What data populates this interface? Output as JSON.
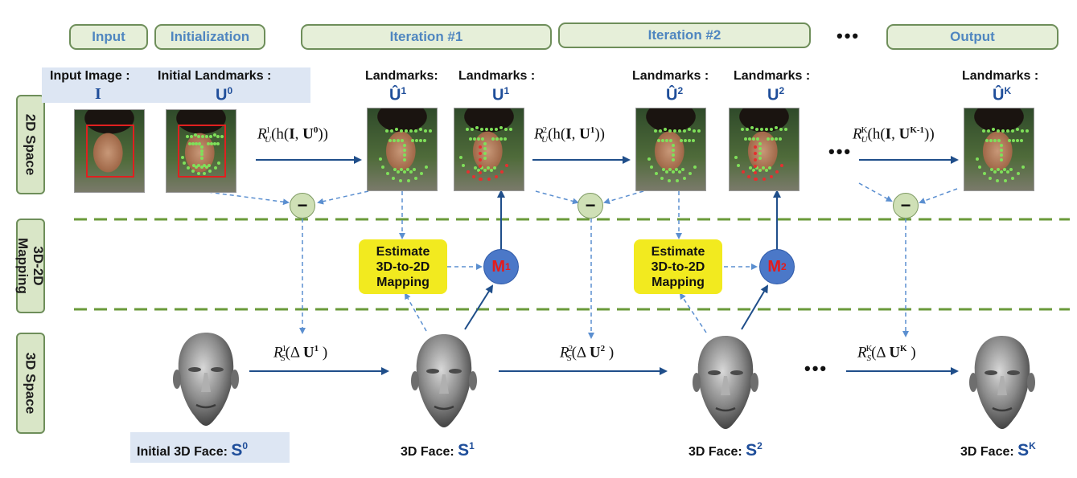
{
  "stage_tags": {
    "input": "Input",
    "initialization": "Initialization",
    "iteration1": "Iteration #1",
    "iteration2": "Iteration #2",
    "ellipsis": "•••",
    "output": "Output"
  },
  "row_labels": {
    "space2d": "2D Space",
    "mapping_line1": "3D-2D",
    "mapping_line2": "Mapping",
    "space3d": "3D Space"
  },
  "labels": {
    "input_image": "Input Image :",
    "initial_landmarks": "Initial Landmarks :",
    "landmarks_hat_1": "Landmarks:",
    "landmarks_1": "Landmarks :",
    "landmarks_hat_2": "Landmarks :",
    "landmarks_2": "Landmarks :",
    "landmarks_hat_k": "Landmarks :"
  },
  "symbols": {
    "I": "I",
    "U0_base": "U",
    "U0_sup": "0",
    "Uhat1_base": "Û",
    "Uhat1_sup": "1",
    "U1_base": "U",
    "U1_sup": "1",
    "Uhat2_base": "Û",
    "Uhat2_sup": "2",
    "U2_base": "U",
    "U2_sup": "2",
    "UhatK_base": "Û",
    "UhatK_sup": "K"
  },
  "formulas": {
    "f1": {
      "R": "R",
      "sub": "U",
      "sup": "1",
      "open": "(h(",
      "I": "I",
      "comma": ", ",
      "U": "U",
      "Usup": "0",
      "close": "))"
    },
    "f2": {
      "R": "R",
      "sub": "U",
      "sup": "2",
      "open": "(h(",
      "I": "I",
      "comma": ", ",
      "U": "U",
      "Usup": "1",
      "close": "))"
    },
    "fk": {
      "R": "R",
      "sub": "U",
      "sup": "K",
      "open": "(h(",
      "I": "I",
      "comma": ", ",
      "U": "U",
      "Usup": "K-1",
      "close": "))"
    },
    "s1": {
      "R": "R",
      "sub": "S",
      "sup": "1",
      "open": "(Δ ",
      "U": "U",
      "Usup": "1",
      "close": " )"
    },
    "s2": {
      "R": "R",
      "sub": "S",
      "sup": "2",
      "open": "(Δ  ",
      "U": "U",
      "Usup": "2",
      "close": " )"
    },
    "sk": {
      "R": "R",
      "sub": "S",
      "sup": "K",
      "open": "(Δ ",
      "U": "U",
      "Usup": "K",
      "close": " )"
    }
  },
  "estimate_box": {
    "line1": "Estimate",
    "line2": "3D-to-2D",
    "line3": "Mapping"
  },
  "mapping_nodes": {
    "m1_base": "M",
    "m1_sup": "1",
    "m2_base": "M",
    "m2_sup": "2"
  },
  "minus_symbol": "−",
  "faces": {
    "s0_label": "Initial 3D Face:",
    "s0_base": "S",
    "s0_sup": "0",
    "s1_label": "3D Face:",
    "s1_base": "S",
    "s1_sup": "1",
    "s2_label": "3D Face:",
    "s2_base": "S",
    "s2_sup": "2",
    "sk_label": "3D Face:",
    "sk_base": "S",
    "sk_sup": "K"
  },
  "ellipsis_text": "•••",
  "colors": {
    "tag_fill": "#e6efd9",
    "tag_border": "#6e8e5a",
    "tag_text": "#4f86c0",
    "arrow_solid": "#1f4e8a",
    "arrow_dashed": "#5b8fd0",
    "divider": "#6a9a3a",
    "estimate_fill": "#f2ea1f",
    "mapping_node": "#4b78c8",
    "mapping_text": "#e51b1b",
    "landmark_green": "#7fe05a",
    "landmark_red": "#e53030"
  }
}
